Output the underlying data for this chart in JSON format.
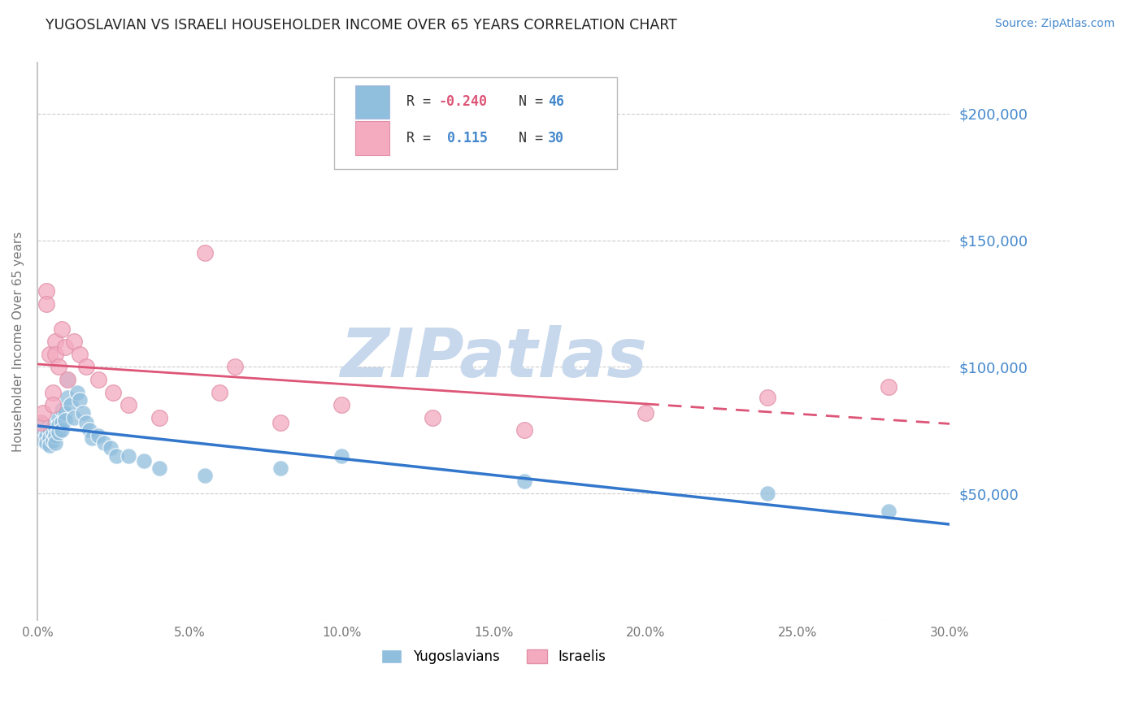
{
  "title": "YUGOSLAVIAN VS ISRAELI HOUSEHOLDER INCOME OVER 65 YEARS CORRELATION CHART",
  "source": "Source: ZipAtlas.com",
  "ylabel": "Householder Income Over 65 years",
  "xlim": [
    0.0,
    0.3
  ],
  "ylim": [
    0,
    220000
  ],
  "grid_color": "#cccccc",
  "background_color": "#ffffff",
  "title_color": "#222222",
  "axis_label_color": "#777777",
  "ytick_color": "#4488cc",
  "xtick_color": "#777777",
  "watermark_color": "#c8d8ec",
  "legend_R1": "-0.240",
  "legend_N1": "46",
  "legend_R2": "0.115",
  "legend_N2": "30",
  "legend_label1": "Yugoslavians",
  "legend_label2": "Israelis",
  "series1_color": "#90bedd",
  "series2_color": "#f4aabf",
  "line1_color": "#3377cc",
  "line2_color": "#dd5577",
  "series2_edgecolor": "#e090a8",
  "yug_x": [
    0.001,
    0.002,
    0.002,
    0.003,
    0.003,
    0.003,
    0.004,
    0.004,
    0.004,
    0.005,
    0.005,
    0.005,
    0.006,
    0.006,
    0.006,
    0.007,
    0.007,
    0.007,
    0.008,
    0.008,
    0.008,
    0.009,
    0.009,
    0.01,
    0.01,
    0.011,
    0.012,
    0.013,
    0.014,
    0.015,
    0.016,
    0.017,
    0.018,
    0.02,
    0.022,
    0.024,
    0.026,
    0.03,
    0.035,
    0.04,
    0.055,
    0.08,
    0.1,
    0.16,
    0.24,
    0.28
  ],
  "yug_y": [
    78000,
    74000,
    71000,
    76000,
    73000,
    70000,
    75000,
    72000,
    69000,
    77000,
    74000,
    71000,
    76000,
    73000,
    70000,
    80000,
    77000,
    74000,
    83000,
    78000,
    75000,
    82000,
    79000,
    95000,
    88000,
    85000,
    80000,
    90000,
    87000,
    82000,
    78000,
    75000,
    72000,
    73000,
    70000,
    68000,
    65000,
    65000,
    63000,
    60000,
    57000,
    60000,
    65000,
    55000,
    50000,
    43000
  ],
  "isr_x": [
    0.001,
    0.002,
    0.003,
    0.003,
    0.004,
    0.005,
    0.005,
    0.006,
    0.006,
    0.007,
    0.008,
    0.009,
    0.01,
    0.012,
    0.014,
    0.016,
    0.02,
    0.025,
    0.03,
    0.04,
    0.055,
    0.06,
    0.065,
    0.08,
    0.1,
    0.13,
    0.16,
    0.2,
    0.24,
    0.28
  ],
  "isr_y": [
    78000,
    82000,
    130000,
    125000,
    105000,
    90000,
    85000,
    110000,
    105000,
    100000,
    115000,
    108000,
    95000,
    110000,
    105000,
    100000,
    95000,
    90000,
    85000,
    80000,
    145000,
    90000,
    100000,
    78000,
    85000,
    80000,
    75000,
    82000,
    88000,
    92000
  ]
}
